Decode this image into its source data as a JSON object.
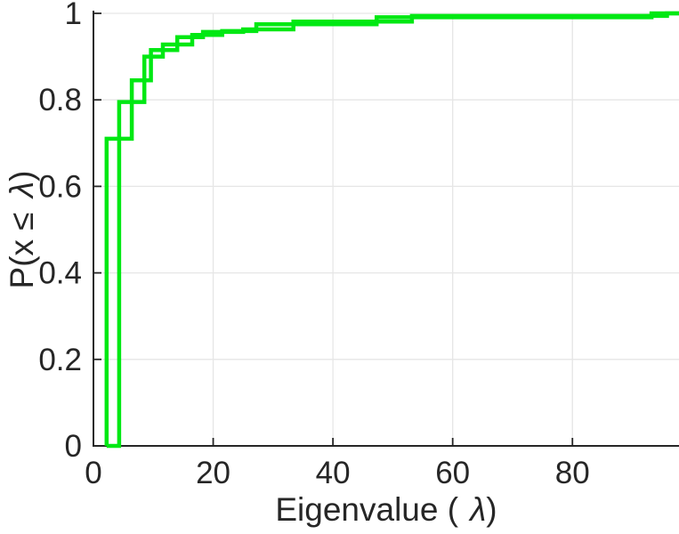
{
  "figure": {
    "xlabel": {
      "prefix": "Eigenvalue (",
      "lambda": "λ",
      "suffix": ")"
    },
    "ylabel": {
      "prefix": "P(x ≤ ",
      "lambda": "λ",
      "suffix": ")"
    }
  },
  "chart_data": {
    "type": "line",
    "subtype": "empirical-cdf-stairs",
    "title": "",
    "xlabel": "Eigenvalue ( λ)",
    "ylabel": "P(x ≤ λ)",
    "xlim": [
      0,
      97.8
    ],
    "ylim": [
      0,
      1
    ],
    "x_ticks": [
      0,
      20,
      40,
      60,
      80
    ],
    "x_tick_labels": [
      "0",
      "20",
      "40",
      "60",
      "80"
    ],
    "y_ticks": [
      0,
      0.2,
      0.4,
      0.6,
      0.8,
      1
    ],
    "y_tick_labels": [
      "0",
      "0.2",
      "0.4",
      "0.6",
      "0.8",
      "1"
    ],
    "grid": true,
    "legend_position": "none",
    "line_color": "#00e813",
    "line_width": 4.5,
    "grid_color": "#e6e6e6",
    "axis_color": "#262626",
    "series": [
      {
        "name": "ecdf-curve-1",
        "start_x": 2.2,
        "steps": [
          [
            2.2,
            0.71
          ],
          [
            6.4,
            0.845
          ],
          [
            9.6,
            0.915
          ],
          [
            14.0,
            0.945
          ],
          [
            18.3,
            0.957
          ],
          [
            25.0,
            0.963
          ],
          [
            33.4,
            0.981
          ],
          [
            53.2,
            0.994
          ],
          [
            95.8,
            1.0
          ]
        ]
      },
      {
        "name": "ecdf-curve-2",
        "start_x": 2.2,
        "steps": [
          [
            4.3,
            0.795
          ],
          [
            8.5,
            0.9
          ],
          [
            11.6,
            0.928
          ],
          [
            16.5,
            0.95
          ],
          [
            21.5,
            0.959
          ],
          [
            27.2,
            0.975
          ],
          [
            47.3,
            0.991
          ],
          [
            93.2,
            1.0
          ]
        ]
      }
    ]
  }
}
